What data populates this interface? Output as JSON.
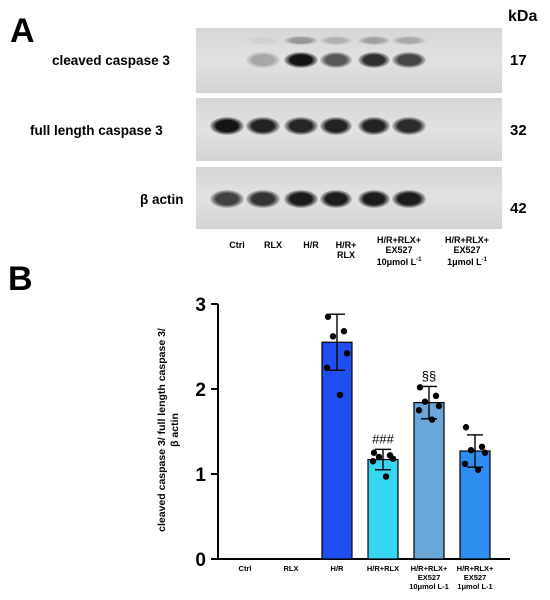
{
  "panel_a": {
    "letter": "A",
    "kda_header": "kDa",
    "rows": [
      {
        "label": "cleaved caspase 3",
        "kda": "17"
      },
      {
        "label": "full length caspase 3",
        "kda": "32"
      },
      {
        "label": "β actin",
        "kda": "42"
      }
    ],
    "lanes": [
      {
        "line1": "Ctrl",
        "line2": "",
        "line3": "",
        "line4": ""
      },
      {
        "line1": "RLX",
        "line2": "",
        "line3": "",
        "line4": ""
      },
      {
        "line1": "H/R",
        "line2": "",
        "line3": "",
        "line4": ""
      },
      {
        "line1": "H/R+",
        "line2": "RLX",
        "line3": "",
        "line4": ""
      },
      {
        "line1": "H/R+RLX+",
        "line2": "EX527",
        "line3": "10μmol L",
        "line4": "-1"
      },
      {
        "line1": "H/R+RLX+",
        "line2": "EX527",
        "line3": "1μmol L",
        "line4": "-1"
      }
    ],
    "band_intensity": {
      "cleaved": [
        0.0,
        0.02,
        1.0,
        0.55,
        0.82,
        0.68
      ],
      "full_length": [
        1.0,
        0.9,
        0.88,
        0.9,
        0.9,
        0.84
      ],
      "actin": [
        0.7,
        0.78,
        0.95,
        0.95,
        0.95,
        0.95
      ]
    }
  },
  "panel_b": {
    "letter": "B"
  },
  "chart_data": {
    "type": "bar",
    "title": "",
    "ylabel_line1": "cleaved caspase 3/ full length caspase 3/",
    "ylabel_line2": "β actin",
    "ylim": [
      0,
      3
    ],
    "yticks": [
      0,
      1,
      2,
      3
    ],
    "categories": [
      {
        "line1": "Ctrl",
        "line2": "",
        "line3": ""
      },
      {
        "line1": "RLX",
        "line2": "",
        "line3": ""
      },
      {
        "line1": "H/R",
        "line2": "",
        "line3": ""
      },
      {
        "line1": "H/R+RLX",
        "line2": "",
        "line3": ""
      },
      {
        "line1": "H/R+RLX+",
        "line2": "EX527",
        "line3": "10μmol L-1"
      },
      {
        "line1": "H/R+RLX+",
        "line2": "EX527",
        "line3": "1μmol L-1"
      }
    ],
    "values": [
      0,
      0,
      2.55,
      1.17,
      1.84,
      1.27
    ],
    "errors": [
      0,
      0,
      0.33,
      0.12,
      0.19,
      0.19
    ],
    "points": [
      [],
      [],
      [
        2.85,
        2.68,
        2.62,
        2.42,
        2.25,
        1.93
      ],
      [
        1.25,
        1.22,
        1.2,
        1.18,
        1.15,
        0.97
      ],
      [
        2.02,
        1.92,
        1.85,
        1.8,
        1.75,
        1.64
      ],
      [
        1.55,
        1.32,
        1.28,
        1.25,
        1.12,
        1.05
      ]
    ],
    "annotations": [
      "",
      "",
      "",
      "###",
      "§§",
      ""
    ],
    "colors": [
      "#1f4ff0",
      "#1f4ff0",
      "#1f4ff0",
      "#36d6f2",
      "#6aa6d8",
      "#2b8ef0"
    ]
  }
}
